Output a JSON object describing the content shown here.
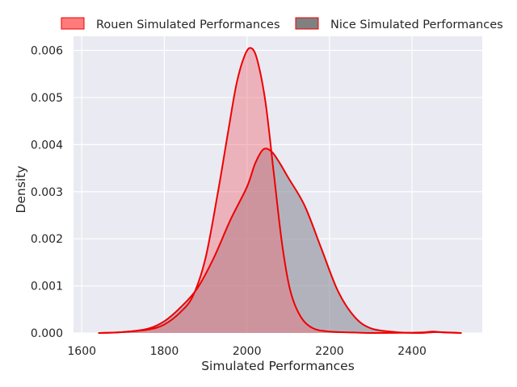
{
  "chart_data": {
    "type": "area",
    "title": "",
    "xlabel": "Simulated Performances",
    "ylabel": "Density",
    "xlim": [
      1580,
      2570
    ],
    "ylim": [
      0,
      0.0063
    ],
    "x_ticks": [
      {
        "value": 1600,
        "label": "1600"
      },
      {
        "value": 1800,
        "label": "1800"
      },
      {
        "value": 2000,
        "label": "2000"
      },
      {
        "value": 2200,
        "label": "2200"
      },
      {
        "value": 2400,
        "label": "2400"
      }
    ],
    "y_ticks": [
      {
        "value": 0.0,
        "label": "0.000"
      },
      {
        "value": 0.001,
        "label": "0.001"
      },
      {
        "value": 0.002,
        "label": "0.002"
      },
      {
        "value": 0.003,
        "label": "0.003"
      },
      {
        "value": 0.004,
        "label": "0.004"
      },
      {
        "value": 0.005,
        "label": "0.005"
      },
      {
        "value": 0.006,
        "label": "0.006"
      }
    ],
    "grid": true,
    "legend": "top",
    "line_color": "#ee0000",
    "series": [
      {
        "name": "Nice Simulated Performances",
        "fill": "#8c8c99",
        "fill_opacity": 0.6,
        "legend_fill": "#808080",
        "points": [
          [
            1640,
            0.0
          ],
          [
            1700,
            2e-05
          ],
          [
            1760,
            9e-05
          ],
          [
            1800,
            0.00025
          ],
          [
            1840,
            0.00055
          ],
          [
            1880,
            0.00095
          ],
          [
            1920,
            0.0016
          ],
          [
            1960,
            0.0024
          ],
          [
            2000,
            0.0031
          ],
          [
            2020,
            0.0036
          ],
          [
            2040,
            0.0039
          ],
          [
            2060,
            0.00385
          ],
          [
            2080,
            0.0036
          ],
          [
            2100,
            0.0033
          ],
          [
            2140,
            0.0027
          ],
          [
            2180,
            0.0018
          ],
          [
            2220,
            0.0009
          ],
          [
            2260,
            0.00035
          ],
          [
            2300,
            0.0001
          ],
          [
            2360,
            2e-05
          ],
          [
            2420,
            0.0
          ],
          [
            2460,
            2e-05
          ],
          [
            2520,
            0.0
          ]
        ]
      },
      {
        "name": "Rouen Simulated Performances",
        "fill": "#f06e78",
        "fill_opacity": 0.45,
        "legend_fill": "#ff7b7b",
        "points": [
          [
            1640,
            0.0
          ],
          [
            1700,
            2e-05
          ],
          [
            1760,
            7e-05
          ],
          [
            1800,
            0.00018
          ],
          [
            1840,
            0.00045
          ],
          [
            1870,
            0.0008
          ],
          [
            1900,
            0.0016
          ],
          [
            1930,
            0.003
          ],
          [
            1955,
            0.0043
          ],
          [
            1975,
            0.0053
          ],
          [
            1995,
            0.0059
          ],
          [
            2010,
            0.00605
          ],
          [
            2025,
            0.0058
          ],
          [
            2045,
            0.0049
          ],
          [
            2065,
            0.0034
          ],
          [
            2085,
            0.0019
          ],
          [
            2105,
            0.0009
          ],
          [
            2130,
            0.00035
          ],
          [
            2160,
            0.0001
          ],
          [
            2200,
            3e-05
          ],
          [
            2260,
            1e-05
          ],
          [
            2320,
            0.0
          ],
          [
            2420,
            1e-05
          ],
          [
            2450,
            3e-05
          ],
          [
            2480,
            1e-05
          ],
          [
            2520,
            0.0
          ]
        ]
      }
    ],
    "legend_order": [
      1,
      0
    ]
  }
}
